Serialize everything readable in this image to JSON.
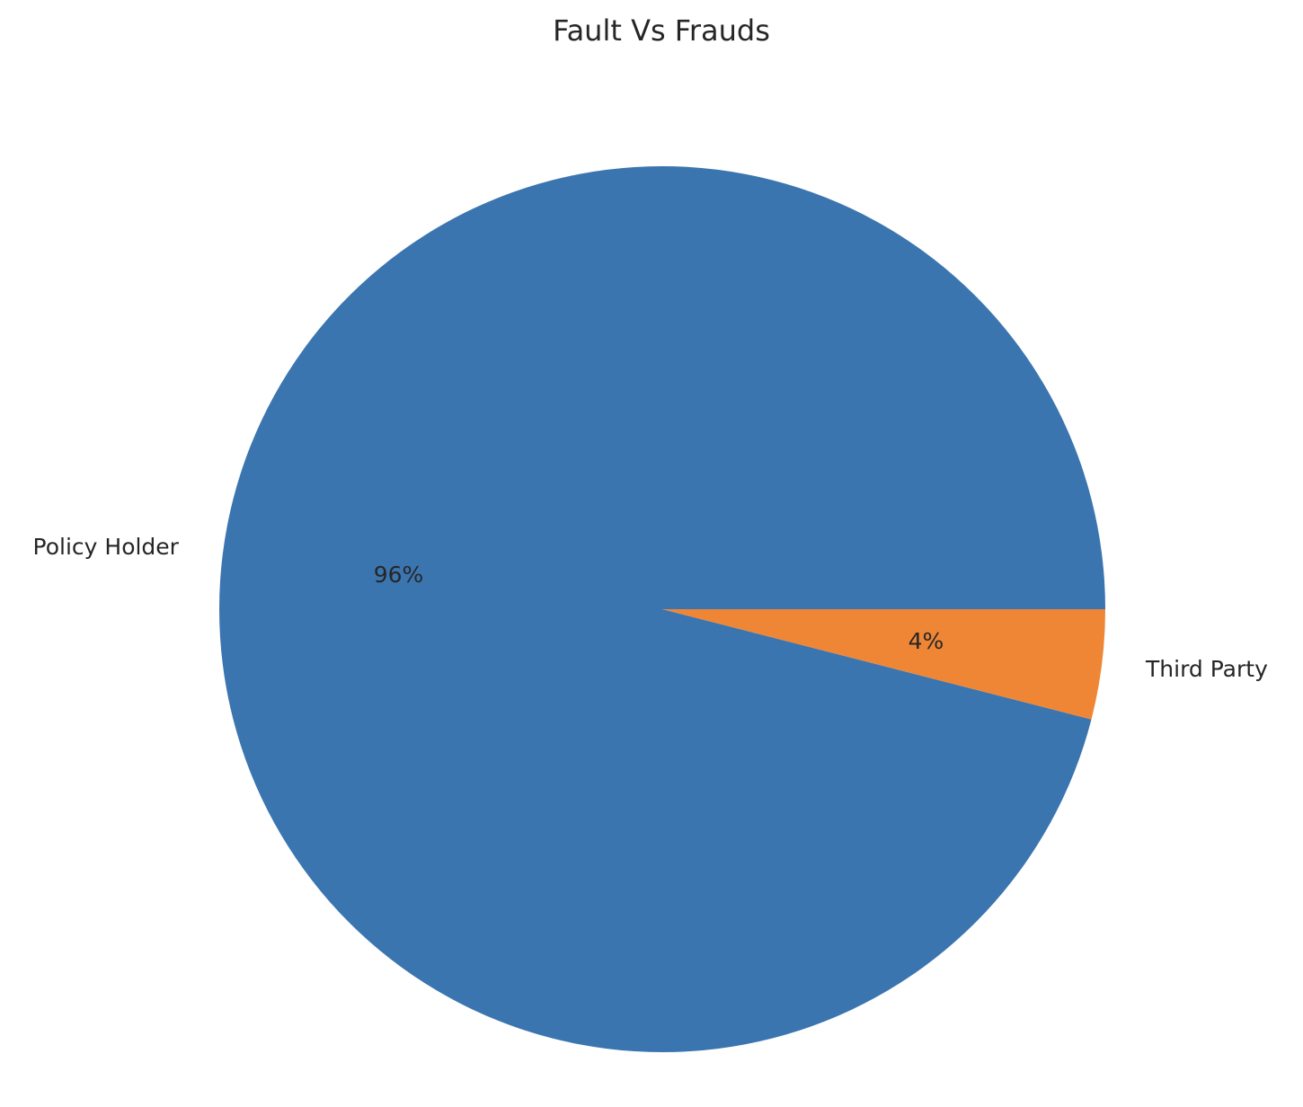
{
  "chart_data": {
    "type": "pie",
    "title": "Fault Vs Frauds",
    "categories": [
      "Policy Holder",
      "Third Party"
    ],
    "values": [
      96,
      4
    ],
    "percent_labels": [
      "96%",
      "4%"
    ],
    "colors": [
      "#3b75af",
      "#ef8636"
    ],
    "start_angle_deg": 0,
    "direction": "counterclockwise"
  }
}
